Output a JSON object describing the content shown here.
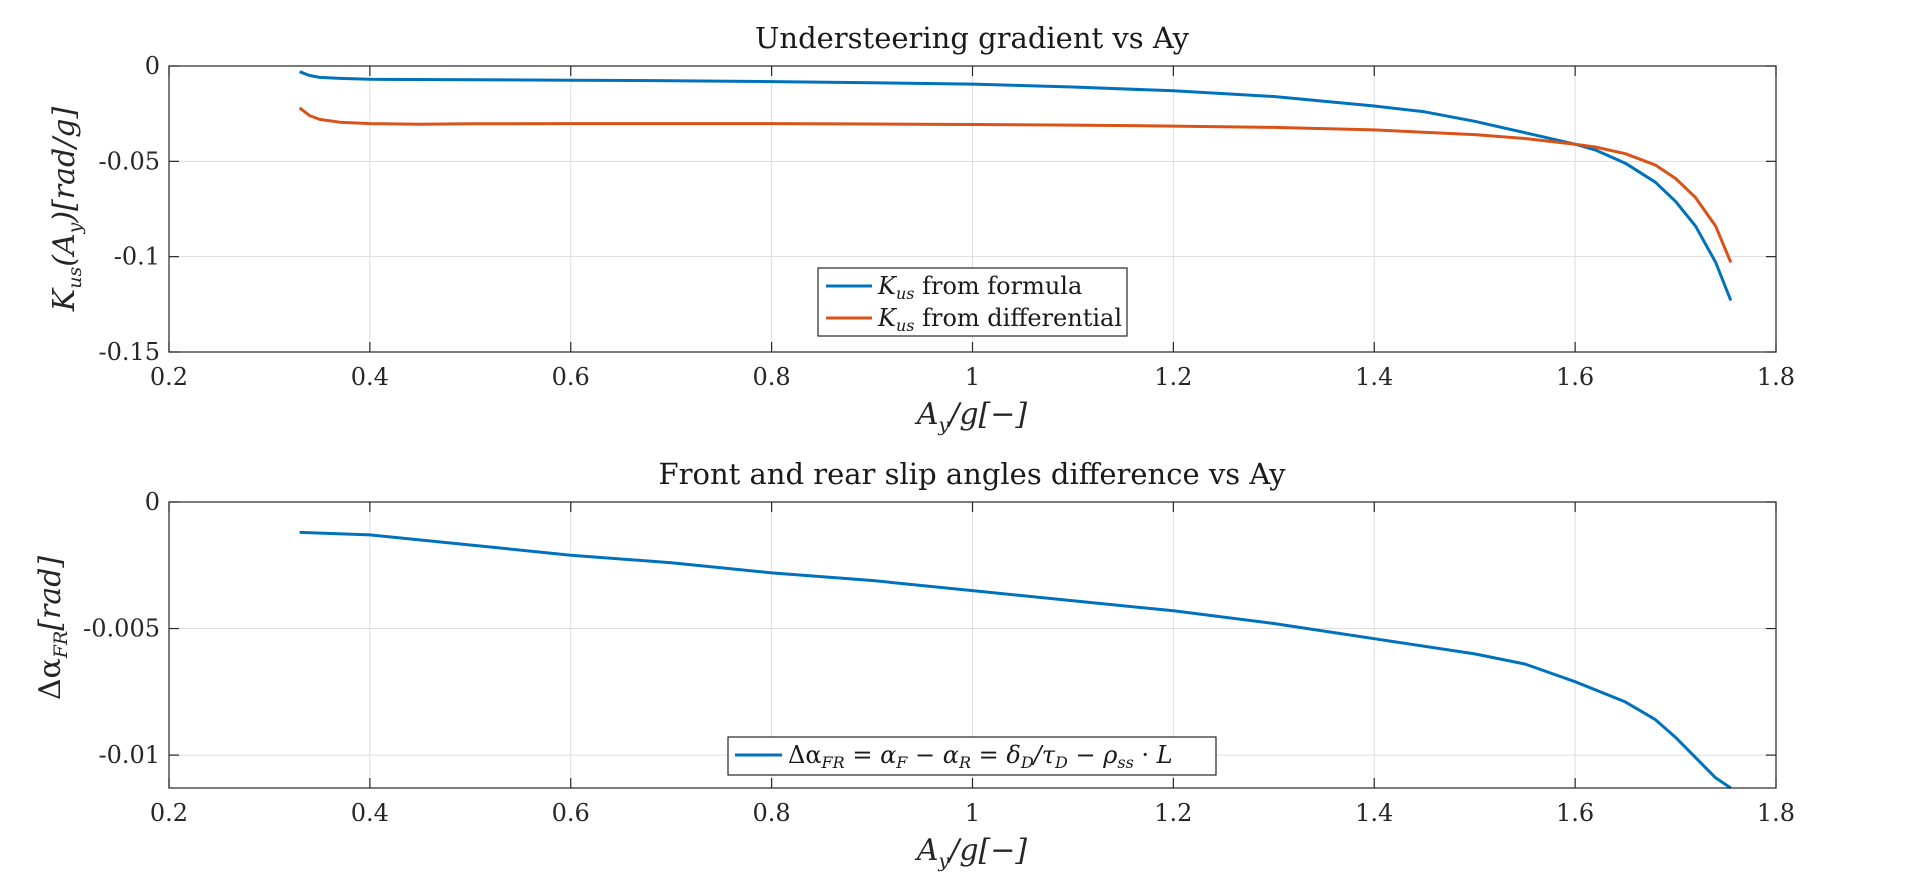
{
  "chart_data": [
    {
      "type": "line",
      "title": "Understeering gradient vs Ay",
      "xlabel": "A_y/g[−]",
      "ylabel": "K_us(A_y)[rad/g]",
      "xlim": [
        0.2,
        1.8
      ],
      "ylim": [
        -0.15,
        0
      ],
      "xticks": [
        0.2,
        0.4,
        0.6,
        0.8,
        1,
        1.2,
        1.4,
        1.6,
        1.8
      ],
      "xtick_labels": [
        "0.2",
        "0.4",
        "0.6",
        "0.8",
        "1",
        "1.2",
        "1.4",
        "1.6",
        "1.8"
      ],
      "yticks": [
        0,
        -0.05,
        -0.1,
        -0.15
      ],
      "ytick_labels": [
        "0",
        "-0.05",
        "-0.1",
        "-0.15"
      ],
      "grid": true,
      "legend_position": "bottom-center",
      "series": [
        {
          "name": "K_us from formula",
          "color": "#0072BD",
          "x": [
            0.33,
            0.34,
            0.35,
            0.37,
            0.4,
            0.5,
            0.6,
            0.7,
            0.8,
            0.9,
            1.0,
            1.1,
            1.2,
            1.3,
            1.4,
            1.45,
            1.5,
            1.55,
            1.6,
            1.62,
            1.65,
            1.68,
            1.7,
            1.72,
            1.74,
            1.755
          ],
          "y": [
            -0.003,
            -0.005,
            -0.006,
            -0.0065,
            -0.007,
            -0.0072,
            -0.0075,
            -0.0077,
            -0.0082,
            -0.0088,
            -0.0095,
            -0.011,
            -0.013,
            -0.016,
            -0.021,
            -0.024,
            -0.029,
            -0.035,
            -0.041,
            -0.044,
            -0.051,
            -0.061,
            -0.071,
            -0.084,
            -0.103,
            -0.123
          ]
        },
        {
          "name": "K_us from differential",
          "color": "#D95319",
          "x": [
            0.33,
            0.34,
            0.35,
            0.37,
            0.4,
            0.45,
            0.5,
            0.6,
            0.7,
            0.8,
            0.9,
            1.0,
            1.1,
            1.2,
            1.3,
            1.4,
            1.5,
            1.55,
            1.6,
            1.62,
            1.65,
            1.68,
            1.7,
            1.72,
            1.74,
            1.755
          ],
          "y": [
            -0.022,
            -0.026,
            -0.028,
            -0.0295,
            -0.0302,
            -0.0305,
            -0.0303,
            -0.0302,
            -0.0302,
            -0.0302,
            -0.0304,
            -0.0307,
            -0.031,
            -0.0315,
            -0.0322,
            -0.0335,
            -0.036,
            -0.038,
            -0.041,
            -0.0425,
            -0.046,
            -0.052,
            -0.059,
            -0.069,
            -0.084,
            -0.103
          ]
        }
      ]
    },
    {
      "type": "line",
      "title": "Front and rear slip angles difference vs Ay",
      "xlabel": "A_y/g[−]",
      "ylabel": "Δα_FR[rad]",
      "xlim": [
        0.2,
        1.8
      ],
      "ylim": [
        -0.0113,
        0
      ],
      "xticks": [
        0.2,
        0.4,
        0.6,
        0.8,
        1,
        1.2,
        1.4,
        1.6,
        1.8
      ],
      "xtick_labels": [
        "0.2",
        "0.4",
        "0.6",
        "0.8",
        "1",
        "1.2",
        "1.4",
        "1.6",
        "1.8"
      ],
      "yticks": [
        0,
        -0.005,
        -0.01
      ],
      "ytick_labels": [
        "0",
        "-0.005",
        "-0.01"
      ],
      "grid": true,
      "legend_position": "bottom-center",
      "series": [
        {
          "name": "Δα_FR = α_F − α_R = δ_D/τ_D − ρ_ss · L",
          "color": "#0072BD",
          "x": [
            0.33,
            0.4,
            0.5,
            0.6,
            0.7,
            0.8,
            0.9,
            1.0,
            1.1,
            1.2,
            1.3,
            1.4,
            1.5,
            1.55,
            1.6,
            1.65,
            1.68,
            1.7,
            1.72,
            1.74,
            1.755
          ],
          "y": [
            -0.0012,
            -0.0013,
            -0.0017,
            -0.0021,
            -0.0024,
            -0.0028,
            -0.0031,
            -0.0035,
            -0.0039,
            -0.0043,
            -0.0048,
            -0.0054,
            -0.006,
            -0.0064,
            -0.0071,
            -0.0079,
            -0.0086,
            -0.0093,
            -0.0101,
            -0.0109,
            -0.0113
          ]
        }
      ]
    }
  ]
}
